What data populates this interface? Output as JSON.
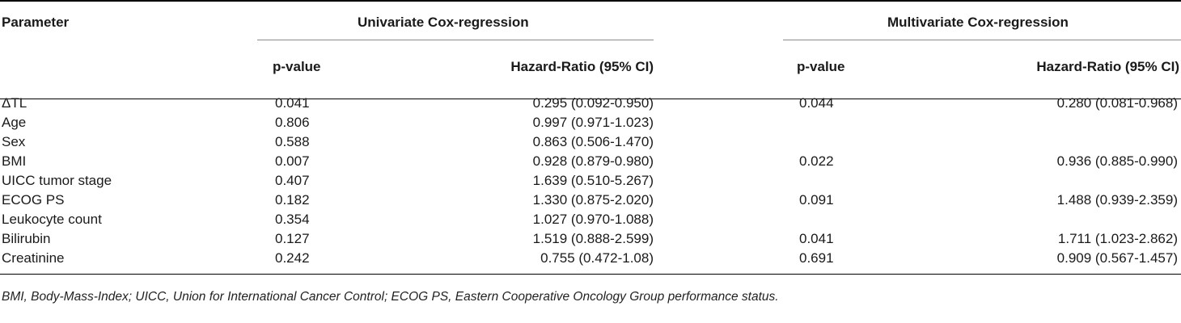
{
  "table": {
    "header": {
      "parameter": "Parameter",
      "univariate": "Univariate Cox-regression",
      "multivariate": "Multivariate Cox-regression",
      "pvalue": "p-value",
      "hazard": "Hazard-Ratio (95% CI)"
    },
    "rows": [
      {
        "param": "ΔTL",
        "u_p": "0.041",
        "u_hr": "0.295 (0.092-0.950)",
        "m_p": "0.044",
        "m_hr": "0.280 (0.081-0.968)"
      },
      {
        "param": "Age",
        "u_p": "0.806",
        "u_hr": "0.997 (0.971-1.023)",
        "m_p": "",
        "m_hr": ""
      },
      {
        "param": "Sex",
        "u_p": "0.588",
        "u_hr": "0.863 (0.506-1.470)",
        "m_p": "",
        "m_hr": ""
      },
      {
        "param": "BMI",
        "u_p": "0.007",
        "u_hr": "0.928 (0.879-0.980)",
        "m_p": "0.022",
        "m_hr": "0.936 (0.885-0.990)"
      },
      {
        "param": "UICC tumor stage",
        "u_p": "0.407",
        "u_hr": "1.639 (0.510-5.267)",
        "m_p": "",
        "m_hr": ""
      },
      {
        "param": "ECOG PS",
        "u_p": "0.182",
        "u_hr": "1.330 (0.875-2.020)",
        "m_p": "0.091",
        "m_hr": "1.488 (0.939-2.359)"
      },
      {
        "param": "Leukocyte count",
        "u_p": "0.354",
        "u_hr": "1.027 (0.970-1.088)",
        "m_p": "",
        "m_hr": ""
      },
      {
        "param": "Bilirubin",
        "u_p": "0.127",
        "u_hr": "1.519 (0.888-2.599)",
        "m_p": "0.041",
        "m_hr": "1.711 (1.023-2.862)"
      },
      {
        "param": "Creatinine",
        "u_p": "0.242",
        "u_hr": "0.755 (0.472-1.08)",
        "m_p": "0.691",
        "m_hr": "0.909 (0.567-1.457)"
      }
    ],
    "footnote": "BMI, Body-Mass-Index; UICC, Union for International Cancer Control; ECOG PS, Eastern Cooperative Oncology Group performance status."
  }
}
